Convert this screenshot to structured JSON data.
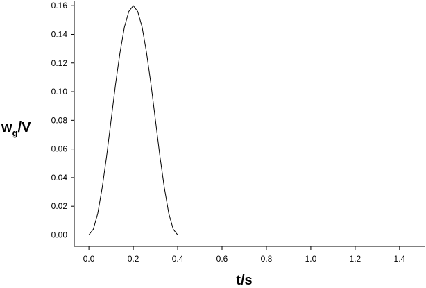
{
  "chart_data": {
    "type": "line",
    "x_label": "t/s",
    "y_label": {
      "main": "w",
      "sub": "g",
      "rest": "/V"
    },
    "x": [
      0,
      0.02,
      0.04,
      0.06,
      0.08,
      0.1,
      0.12,
      0.14,
      0.16,
      0.18,
      0.2,
      0.22,
      0.24,
      0.26,
      0.28,
      0.3,
      0.32,
      0.34,
      0.36,
      0.38,
      0.4
    ],
    "series": [
      {
        "name": "wg",
        "color": "#000000",
        "values": [
          0,
          0.004,
          0.015,
          0.033,
          0.055,
          0.08,
          0.105,
          0.127,
          0.145,
          0.156,
          0.16,
          0.156,
          0.145,
          0.127,
          0.105,
          0.08,
          0.055,
          0.033,
          0.015,
          0.004,
          0
        ]
      }
    ],
    "xlim": [
      -0.066,
      1.513
    ],
    "ylim": [
      -0.008,
      0.163
    ],
    "xticks": [
      {
        "value": 0,
        "label": "0.0"
      },
      {
        "value": 0.2,
        "label": "0.2"
      },
      {
        "value": 0.4,
        "label": "0.4"
      },
      {
        "value": 0.6,
        "label": "0.6"
      },
      {
        "value": 0.8,
        "label": "0.8"
      },
      {
        "value": 1,
        "label": "1.0"
      },
      {
        "value": 1.2,
        "label": "1.2"
      },
      {
        "value": 1.4,
        "label": "1.4"
      }
    ],
    "yticks": [
      {
        "value": 0,
        "label": "0.00"
      },
      {
        "value": 0.02,
        "label": "0.02"
      },
      {
        "value": 0.04,
        "label": "0.04"
      },
      {
        "value": 0.06,
        "label": "0.06"
      },
      {
        "value": 0.08,
        "label": "0.08"
      },
      {
        "value": 0.1,
        "label": "0.10"
      },
      {
        "value": 0.12,
        "label": "0.12"
      },
      {
        "value": 0.14,
        "label": "0.14"
      },
      {
        "value": 0.16,
        "label": "0.16"
      }
    ],
    "grid": false
  }
}
